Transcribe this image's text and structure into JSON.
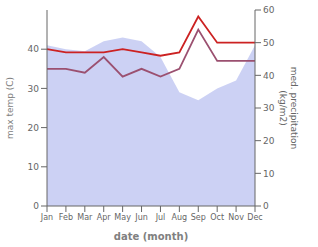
{
  "chart_data": {
    "type": "line",
    "x_label": "date (month)",
    "y_label": "max temp (C)",
    "y2_label": "med. precipitation\n(kg/m2)",
    "categories": [
      "Jan",
      "Feb",
      "Mar",
      "Apr",
      "May",
      "Jun",
      "Jul",
      "Aug",
      "Sep",
      "Oct",
      "Nov",
      "Dec"
    ],
    "series": [
      {
        "type": "area",
        "color": "#b0b8ee",
        "values": [
          41,
          40,
          39.5,
          42,
          43,
          42,
          38,
          29,
          27,
          30,
          32,
          41
        ]
      },
      {
        "type": "line",
        "color": "#9b5070",
        "values": [
          35,
          35,
          34,
          38,
          33,
          35,
          33,
          35,
          45,
          37,
          37,
          37
        ]
      },
      {
        "type": "line",
        "color": "#cc2222",
        "axis": "y2",
        "values": [
          48,
          47,
          47,
          47,
          48,
          47,
          46,
          47,
          58,
          50,
          50,
          50
        ]
      }
    ],
    "ylim": [
      0,
      50
    ],
    "yticks": [
      0,
      10,
      20,
      30,
      40
    ],
    "y2lim": [
      0,
      60
    ],
    "y2ticks": [
      0,
      10,
      20,
      30,
      40,
      50,
      60
    ],
    "grid": false
  }
}
